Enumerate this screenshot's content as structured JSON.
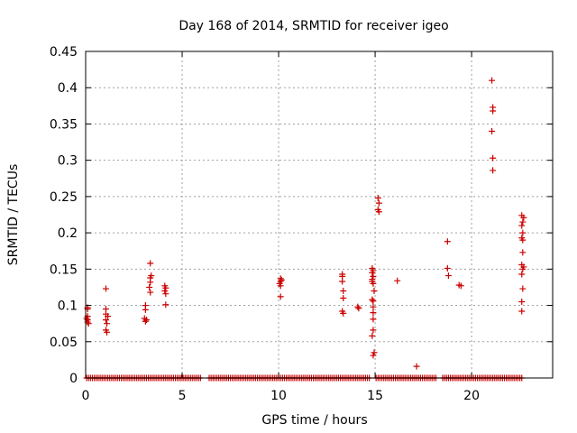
{
  "chart_data": {
    "type": "scatter",
    "title": "Day 168 of 2014, SRMTID for receiver igeo",
    "xlabel": "GPS time / hours",
    "ylabel": "SRMTID / TECUs",
    "xlim": [
      0,
      24.2
    ],
    "ylim": [
      0,
      0.45
    ],
    "xticks": [
      0,
      5,
      10,
      15,
      20
    ],
    "yticks": [
      0,
      0.05,
      0.1,
      0.15,
      0.2,
      0.25,
      0.3,
      0.35,
      0.4,
      0.45
    ],
    "ytick_labels": [
      "0",
      "0.05",
      "0.1",
      "0.15",
      "0.2",
      "0.25",
      "0.3",
      "0.35",
      "0.4",
      "0.45"
    ],
    "grid": true,
    "marker": "plus",
    "color": "#cc0000",
    "series": [
      {
        "name": "SRMTID",
        "points": [
          [
            0.1,
            0.097
          ],
          [
            0.1,
            0.095
          ],
          [
            0.1,
            0.085
          ],
          [
            0.05,
            0.082
          ],
          [
            0.1,
            0.08
          ],
          [
            0.1,
            0.077
          ],
          [
            0.15,
            0.075
          ],
          [
            1.05,
            0.123
          ],
          [
            1.05,
            0.095
          ],
          [
            1.05,
            0.088
          ],
          [
            1.15,
            0.085
          ],
          [
            1.05,
            0.08
          ],
          [
            1.1,
            0.075
          ],
          [
            1.05,
            0.066
          ],
          [
            1.1,
            0.063
          ],
          [
            3.1,
            0.1
          ],
          [
            3.1,
            0.094
          ],
          [
            3.05,
            0.082
          ],
          [
            3.15,
            0.08
          ],
          [
            3.1,
            0.078
          ],
          [
            3.35,
            0.158
          ],
          [
            3.4,
            0.141
          ],
          [
            3.35,
            0.138
          ],
          [
            3.35,
            0.132
          ],
          [
            3.3,
            0.125
          ],
          [
            3.35,
            0.118
          ],
          [
            4.1,
            0.127
          ],
          [
            4.15,
            0.124
          ],
          [
            4.1,
            0.12
          ],
          [
            4.15,
            0.116
          ],
          [
            4.15,
            0.101
          ],
          [
            10.1,
            0.137
          ],
          [
            10.15,
            0.135
          ],
          [
            10.1,
            0.133
          ],
          [
            10.05,
            0.13
          ],
          [
            10.1,
            0.127
          ],
          [
            10.1,
            0.112
          ],
          [
            13.3,
            0.143
          ],
          [
            13.3,
            0.14
          ],
          [
            13.3,
            0.133
          ],
          [
            13.35,
            0.12
          ],
          [
            13.35,
            0.11
          ],
          [
            13.3,
            0.092
          ],
          [
            13.35,
            0.089
          ],
          [
            14.1,
            0.098
          ],
          [
            14.15,
            0.096
          ],
          [
            14.85,
            0.151
          ],
          [
            14.9,
            0.148
          ],
          [
            14.85,
            0.145
          ],
          [
            14.9,
            0.14
          ],
          [
            14.85,
            0.136
          ],
          [
            14.85,
            0.133
          ],
          [
            14.9,
            0.13
          ],
          [
            14.95,
            0.12
          ],
          [
            14.85,
            0.108
          ],
          [
            14.9,
            0.106
          ],
          [
            14.9,
            0.098
          ],
          [
            14.9,
            0.09
          ],
          [
            14.9,
            0.081
          ],
          [
            14.9,
            0.066
          ],
          [
            14.85,
            0.058
          ],
          [
            14.95,
            0.035
          ],
          [
            14.9,
            0.031
          ],
          [
            15.15,
            0.248
          ],
          [
            15.2,
            0.241
          ],
          [
            15.15,
            0.232
          ],
          [
            15.2,
            0.229
          ],
          [
            16.15,
            0.134
          ],
          [
            17.15,
            0.016
          ],
          [
            18.75,
            0.188
          ],
          [
            18.75,
            0.151
          ],
          [
            18.8,
            0.141
          ],
          [
            19.35,
            0.128
          ],
          [
            19.45,
            0.127
          ],
          [
            21.05,
            0.41
          ],
          [
            21.1,
            0.373
          ],
          [
            21.1,
            0.368
          ],
          [
            21.05,
            0.34
          ],
          [
            21.1,
            0.303
          ],
          [
            21.1,
            0.286
          ],
          [
            22.6,
            0.224
          ],
          [
            22.7,
            0.221
          ],
          [
            22.65,
            0.215
          ],
          [
            22.6,
            0.21
          ],
          [
            22.65,
            0.2
          ],
          [
            22.6,
            0.193
          ],
          [
            22.65,
            0.19
          ],
          [
            22.65,
            0.173
          ],
          [
            22.6,
            0.156
          ],
          [
            22.7,
            0.153
          ],
          [
            22.65,
            0.15
          ],
          [
            22.6,
            0.143
          ],
          [
            22.65,
            0.123
          ],
          [
            22.6,
            0.105
          ],
          [
            22.6,
            0.092
          ]
        ],
        "zero_runs": [
          [
            0.05,
            5.95
          ],
          [
            6.4,
            14.7
          ],
          [
            15.05,
            18.15
          ],
          [
            18.5,
            22.6
          ]
        ]
      }
    ]
  }
}
